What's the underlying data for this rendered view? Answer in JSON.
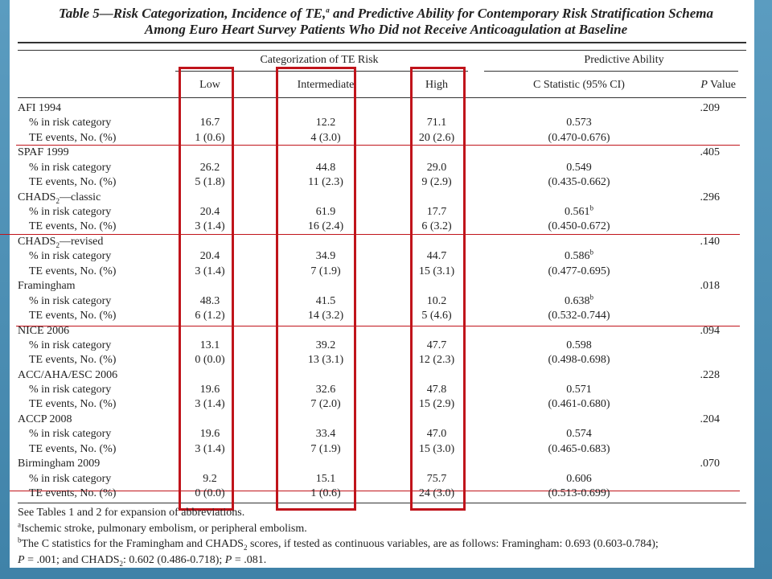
{
  "header": {
    "title": [
      [
        {
          "t": "Table 5—Risk Categorization, Incidence of TE,"
        },
        {
          "t": "a",
          "s": "sup"
        },
        {
          "t": " and Predictive Ability for Contemporary Risk Stratification Schema"
        }
      ],
      [
        {
          "t": "Among Euro Heart Survey Patients Who Did not Receive Anticoagulation at Baseline"
        }
      ]
    ]
  },
  "table": {
    "group_headers": [
      "Categorization of TE Risk",
      "Predictive Ability"
    ],
    "columns": [
      [
        {
          "t": "Low"
        }
      ],
      [
        {
          "t": "Intermediate"
        }
      ],
      [
        {
          "t": "High"
        }
      ],
      [
        {
          "t": "C Statistic (95% CI)"
        }
      ],
      [
        {
          "t": "P",
          "s": "i"
        },
        {
          "t": " Value"
        }
      ]
    ],
    "row_labels": {
      "pct": "% in risk category",
      "te": "TE events, No. (%)"
    },
    "rows": [
      {
        "name": [
          {
            "t": "AFI 1994"
          }
        ],
        "p": ".209",
        "pct": [
          "16.7",
          "12.2",
          "71.1"
        ],
        "c": [
          {
            "t": "0.573"
          }
        ],
        "te": [
          "1 (0.6)",
          "4 (3.0)",
          "20 (2.6)"
        ],
        "ci": "(0.470-0.676)"
      },
      {
        "name": [
          {
            "t": "SPAF 1999"
          }
        ],
        "p": ".405",
        "pct": [
          "26.2",
          "44.8",
          "29.0"
        ],
        "c": [
          {
            "t": "0.549"
          }
        ],
        "te": [
          "5 (1.8)",
          "11 (2.3)",
          "9 (2.9)"
        ],
        "ci": "(0.435-0.662)"
      },
      {
        "name": [
          {
            "t": "CHADS"
          },
          {
            "t": "2",
            "s": "sub"
          },
          {
            "t": "—classic"
          }
        ],
        "p": ".296",
        "pct": [
          "20.4",
          "61.9",
          "17.7"
        ],
        "c": [
          {
            "t": "0.561"
          },
          {
            "t": "b",
            "s": "sup"
          }
        ],
        "te": [
          "3 (1.4)",
          "16 (2.4)",
          "6 (3.2)"
        ],
        "ci": "(0.450-0.672)"
      },
      {
        "name": [
          {
            "t": "CHADS"
          },
          {
            "t": "2",
            "s": "sub"
          },
          {
            "t": "—revised"
          }
        ],
        "p": ".140",
        "pct": [
          "20.4",
          "34.9",
          "44.7"
        ],
        "c": [
          {
            "t": "0.586"
          },
          {
            "t": "b",
            "s": "sup"
          }
        ],
        "te": [
          "3 (1.4)",
          "7 (1.9)",
          "15 (3.1)"
        ],
        "ci": "(0.477-0.695)"
      },
      {
        "name": [
          {
            "t": "Framingham"
          }
        ],
        "p": ".018",
        "pct": [
          "48.3",
          "41.5",
          "10.2"
        ],
        "c": [
          {
            "t": "0.638"
          },
          {
            "t": "b",
            "s": "sup"
          }
        ],
        "te": [
          "6 (1.2)",
          "14 (3.2)",
          "5 (4.6)"
        ],
        "ci": "(0.532-0.744)"
      },
      {
        "name": [
          {
            "t": "NICE 2006"
          }
        ],
        "p": ".094",
        "pct": [
          "13.1",
          "39.2",
          "47.7"
        ],
        "c": [
          {
            "t": "0.598"
          }
        ],
        "te": [
          "0 (0.0)",
          "13 (3.1)",
          "12 (2.3)"
        ],
        "ci": "(0.498-0.698)"
      },
      {
        "name": [
          {
            "t": "ACC/AHA/ESC 2006"
          }
        ],
        "p": ".228",
        "pct": [
          "19.6",
          "32.6",
          "47.8"
        ],
        "c": [
          {
            "t": "0.571"
          }
        ],
        "te": [
          "3 (1.4)",
          "7 (2.0)",
          "15 (2.9)"
        ],
        "ci": "(0.461-0.680)"
      },
      {
        "name": [
          {
            "t": "ACCP 2008"
          }
        ],
        "p": ".204",
        "pct": [
          "19.6",
          "33.4",
          "47.0"
        ],
        "c": [
          {
            "t": "0.574"
          }
        ],
        "te": [
          "3 (1.4)",
          "7 (1.9)",
          "15 (3.0)"
        ],
        "ci": "(0.465-0.683)"
      },
      {
        "name": [
          {
            "t": "Birmingham 2009"
          }
        ],
        "p": ".070",
        "pct": [
          "9.2",
          "15.1",
          "75.7"
        ],
        "c": [
          {
            "t": "0.606"
          }
        ],
        "te": [
          "0 (0.0)",
          "1 (0.6)",
          "24 (3.0)"
        ],
        "ci": "(0.513-0.699)"
      }
    ],
    "footnotes": [
      [
        {
          "t": "See Tables 1 and 2 for expansion of abbreviations."
        }
      ],
      [
        {
          "t": "a",
          "s": "sup"
        },
        {
          "t": "Ischemic stroke, pulmonary embolism, or peripheral embolism."
        }
      ],
      [
        {
          "t": "b",
          "s": "sup"
        },
        {
          "t": "The C statistics for the Framingham and CHADS"
        },
        {
          "t": "2",
          "s": "sub"
        },
        {
          "t": " scores, if tested as continuous variables, are as follows: Framingham: 0.693 (0.603-0.784);"
        }
      ],
      [
        {
          "t": "P",
          "s": "i"
        },
        {
          "t": " = .001; and CHADS"
        },
        {
          "t": "2",
          "s": "sub"
        },
        {
          "t": ": 0.602 (0.486-0.718); "
        },
        {
          "t": "P",
          "s": "i"
        },
        {
          "t": " = .081."
        }
      ]
    ]
  }
}
